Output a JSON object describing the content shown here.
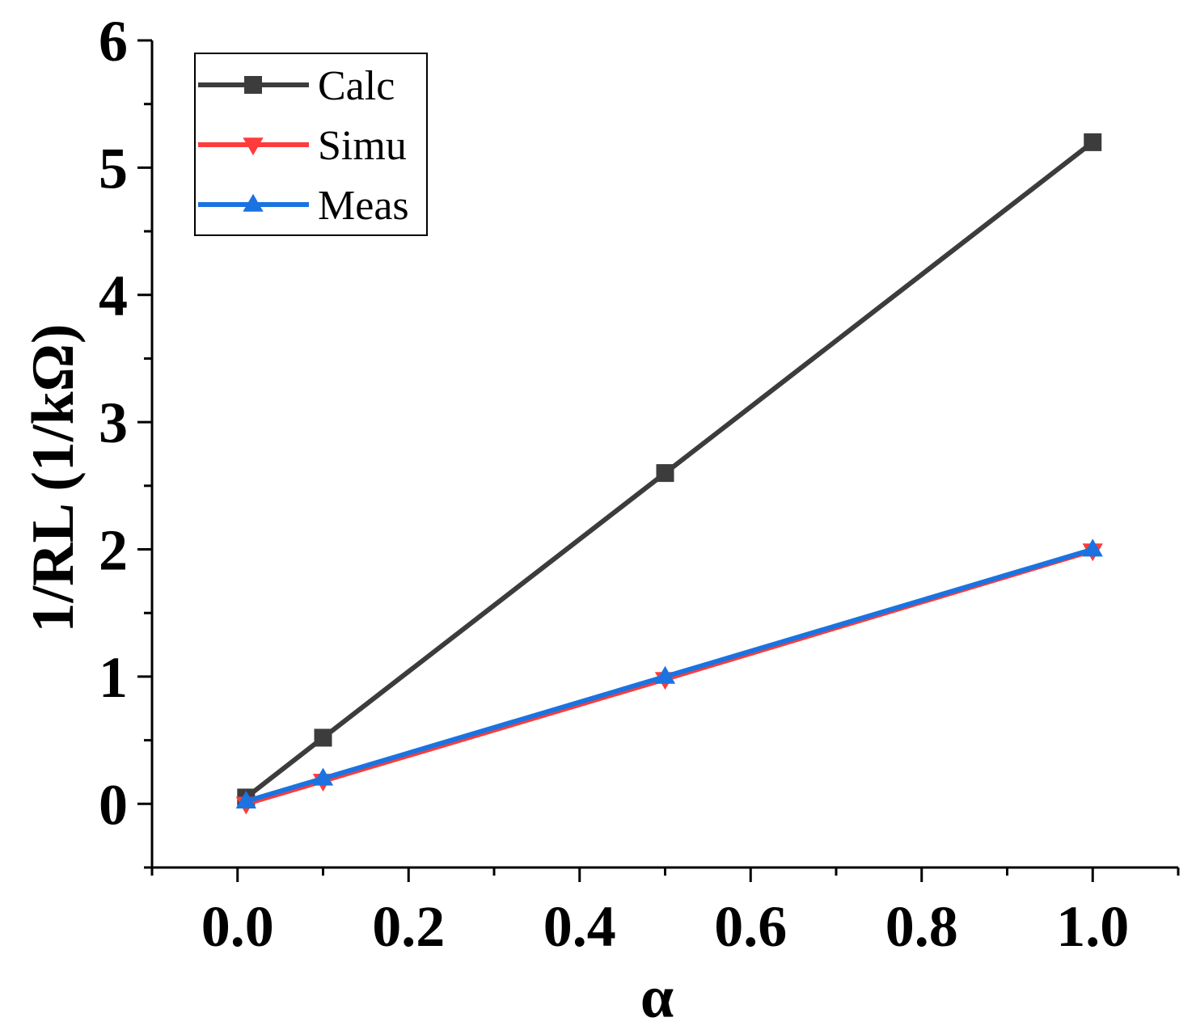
{
  "chart_data": {
    "type": "line",
    "title": "",
    "xlabel": "α",
    "ylabel": "1/RL (1/kΩ)",
    "xlim": [
      -0.1,
      1.1
    ],
    "ylim": [
      -0.5,
      6
    ],
    "x_ticks": [
      0.0,
      0.2,
      0.4,
      0.6,
      0.8,
      1.0
    ],
    "x_tick_labels": [
      "0.0",
      "0.2",
      "0.4",
      "0.6",
      "0.8",
      "1.0"
    ],
    "y_ticks": [
      0,
      1,
      2,
      3,
      4,
      5,
      6
    ],
    "y_tick_labels": [
      "0",
      "1",
      "2",
      "3",
      "4",
      "5",
      "6"
    ],
    "x": [
      0.01,
      0.1,
      0.5,
      1.0
    ],
    "series": [
      {
        "name": "Calc",
        "values": [
          0.05,
          0.52,
          2.6,
          5.2
        ],
        "color": "#3c3c3c",
        "marker": "square"
      },
      {
        "name": "Simu",
        "values": [
          0.0,
          0.18,
          0.98,
          1.99
        ],
        "color": "#ff3b3b",
        "marker": "triangle-down"
      },
      {
        "name": "Meas",
        "values": [
          0.02,
          0.2,
          1.0,
          2.0
        ],
        "color": "#1a73e0",
        "marker": "triangle-up"
      }
    ],
    "legend": {
      "position": "top-left"
    },
    "grid": false
  }
}
